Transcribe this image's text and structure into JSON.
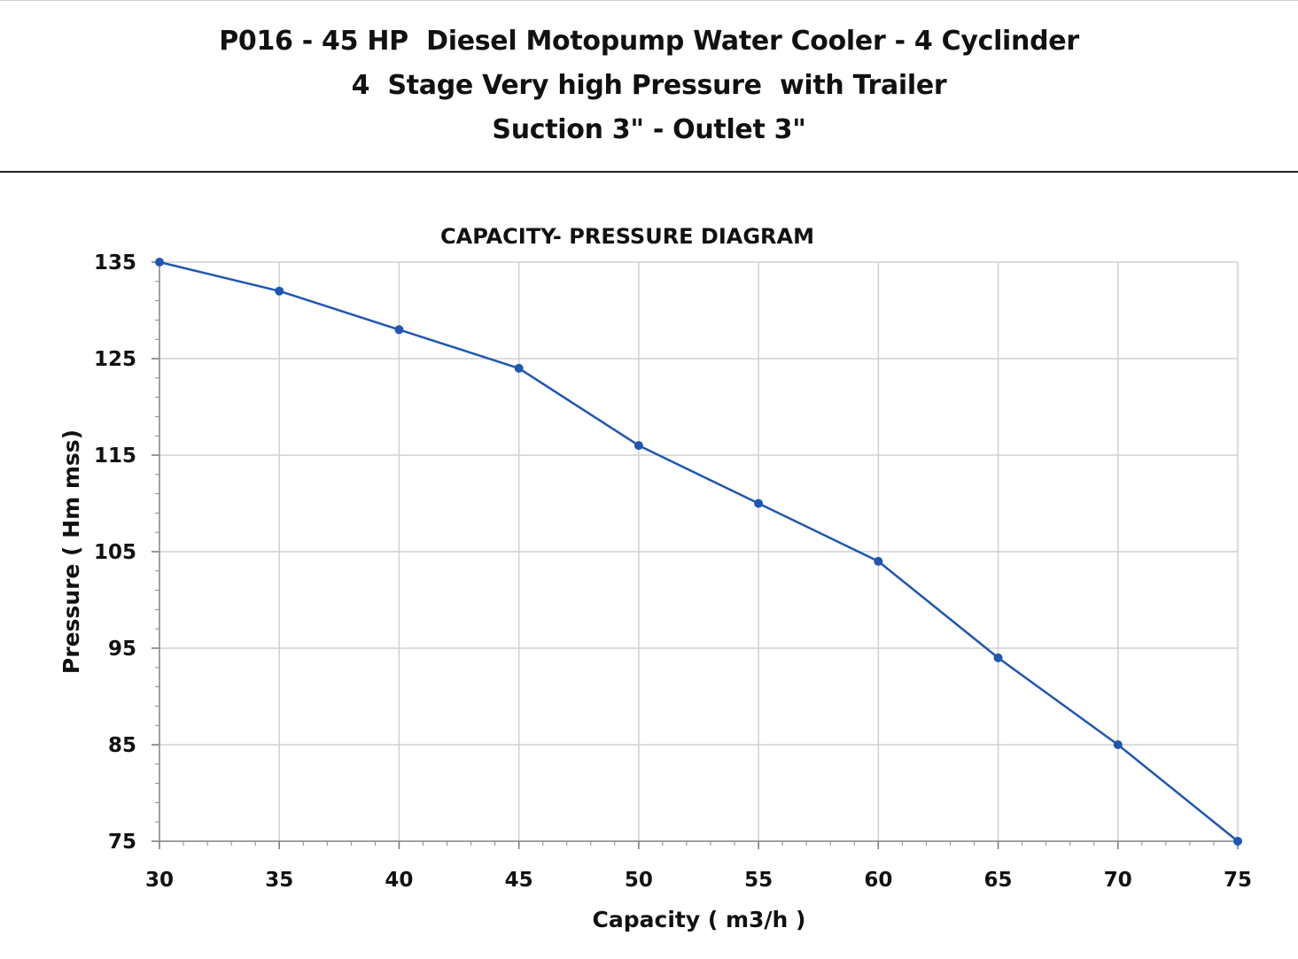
{
  "header": {
    "line1": "P016 - 45 HP  Diesel Motopump Water Cooler - 4 Cyclinder",
    "line2": "4  Stage Very high Pressure  with Trailer",
    "line3": "Suction 3\" - Outlet 3\""
  },
  "chart_data": {
    "type": "line",
    "title": "CAPACITY- PRESSURE DIAGRAM",
    "xlabel": "Capacity ( m3/h )",
    "ylabel": "Pressure ( Hm mss)",
    "xlim": [
      30,
      75
    ],
    "ylim": [
      75,
      135
    ],
    "xticks": [
      30,
      35,
      40,
      45,
      50,
      55,
      60,
      65,
      70,
      75
    ],
    "yticks": [
      75,
      85,
      95,
      105,
      115,
      125,
      135
    ],
    "grid": true,
    "series": [
      {
        "x": [
          30,
          35,
          40,
          45,
          50,
          55,
          60,
          65,
          70,
          75
        ],
        "y": [
          135,
          132,
          128,
          124,
          116,
          110,
          104,
          94,
          85,
          75
        ],
        "color": "#1f56b4",
        "marker": "circle"
      }
    ]
  }
}
